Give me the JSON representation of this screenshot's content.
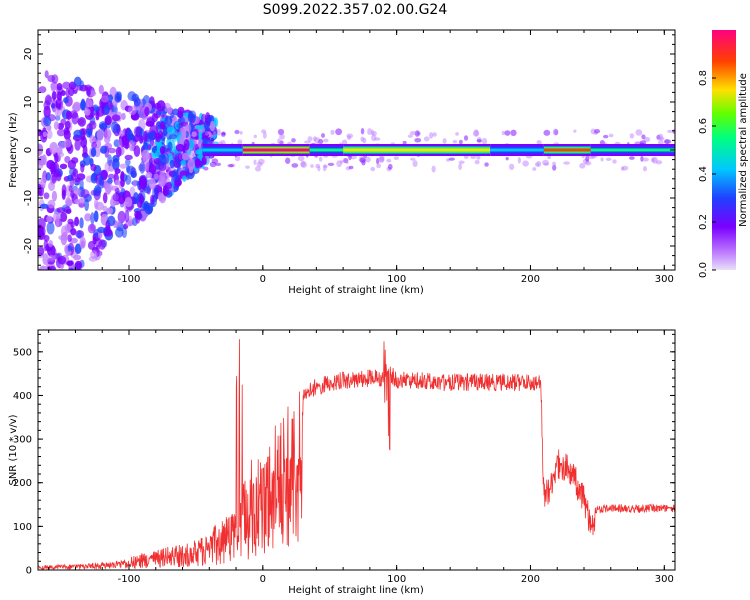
{
  "figure": {
    "title": "S099.2022.357.02.00.G24"
  },
  "chart_data": [
    {
      "type": "heatmap",
      "title": "S099.2022.357.02.00.G24",
      "xlabel": "Height of straight line (km)",
      "ylabel": "Frequency (Hz)",
      "xlim": [
        -168,
        308
      ],
      "ylim": [
        -25,
        25
      ],
      "x_ticks": [
        -100,
        0,
        100,
        200,
        300
      ],
      "y_ticks": [
        -20,
        -10,
        0,
        10,
        20
      ],
      "colorbar": {
        "label": "Normalized spectral amplitude",
        "range": [
          0,
          1
        ],
        "ticks": [
          0.0,
          0.2,
          0.4,
          0.6,
          0.8
        ],
        "colormap": [
          "#e8e0f8",
          "#c080ff",
          "#7a00ff",
          "#2040ff",
          "#00c8ff",
          "#00ff80",
          "#60ff00",
          "#ffe000",
          "#ff4000",
          "#ff0080"
        ]
      },
      "ridge": {
        "description": "high-amplitude line near 0 Hz",
        "x_start": -45,
        "x_end": 308,
        "frequency_hz": 0,
        "segments": [
          {
            "x_start": -45,
            "x_end": -15,
            "amplitude": 0.45
          },
          {
            "x_start": -15,
            "x_end": 35,
            "amplitude": 0.95
          },
          {
            "x_start": 35,
            "x_end": 60,
            "amplitude": 0.55
          },
          {
            "x_start": 60,
            "x_end": 170,
            "amplitude": 0.8
          },
          {
            "x_start": 170,
            "x_end": 210,
            "amplitude": 0.4
          },
          {
            "x_start": 210,
            "x_end": 245,
            "amplitude": 0.85
          },
          {
            "x_start": 245,
            "x_end": 308,
            "amplitude": 0.5
          }
        ]
      },
      "scatter_region": {
        "x_start": -168,
        "x_end": -45,
        "frequency_spread_hz": [
          -25,
          25
        ],
        "amplitude": [
          0.1,
          0.4
        ]
      }
    },
    {
      "type": "line",
      "xlabel": "Height of straight line (km)",
      "ylabel": "SNR (10 * v/v)",
      "xlim": [
        -168,
        308
      ],
      "ylim": [
        0,
        550
      ],
      "x_ticks": [
        -100,
        0,
        100,
        200,
        300
      ],
      "y_ticks": [
        0,
        100,
        200,
        300,
        400,
        500
      ],
      "color": "#f03030",
      "series": [
        {
          "x": [
            -168,
            -150,
            -130,
            -110,
            -100,
            -90,
            -80,
            -70,
            -60,
            -50,
            -40,
            -30,
            -20,
            -15,
            -10,
            0,
            10,
            20,
            30,
            40,
            50,
            60,
            70,
            80,
            90,
            95,
            100,
            110,
            120,
            130,
            140,
            150,
            160,
            170,
            180,
            190,
            200,
            208,
            210,
            215,
            220,
            230,
            240,
            245,
            248,
            255,
            270,
            290,
            308
          ],
          "y": [
            10,
            12,
            15,
            20,
            30,
            40,
            45,
            55,
            60,
            70,
            90,
            120,
            160,
            200,
            250,
            290,
            340,
            390,
            420,
            440,
            450,
            455,
            455,
            460,
            460,
            470,
            455,
            455,
            455,
            450,
            450,
            450,
            450,
            450,
            450,
            450,
            450,
            450,
            200,
            230,
            280,
            260,
            200,
            140,
            145,
            150,
            150,
            150,
            150
          ]
        }
      ]
    }
  ]
}
